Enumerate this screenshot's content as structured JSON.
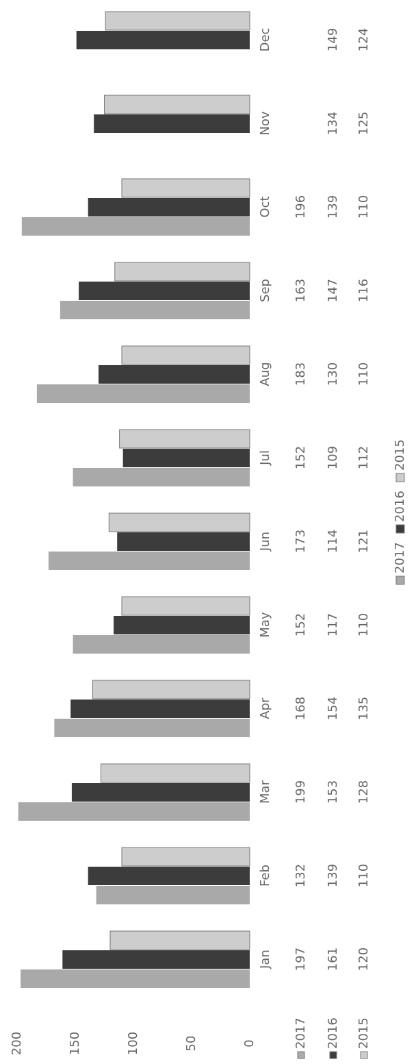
{
  "chart_data": {
    "type": "bar",
    "categories": [
      "Jan",
      "Feb",
      "Mar",
      "Apr",
      "May",
      "Jun",
      "Jul",
      "Aug",
      "Sep",
      "Oct",
      "Nov",
      "Dec"
    ],
    "series": [
      {
        "name": "2017",
        "color": "#a9a9a9",
        "values": [
          197,
          132,
          199,
          168,
          152,
          173,
          152,
          183,
          163,
          196,
          null,
          null
        ]
      },
      {
        "name": "2016",
        "color": "#3c3c3c",
        "values": [
          161,
          139,
          153,
          154,
          117,
          114,
          109,
          130,
          147,
          139,
          134,
          149
        ]
      },
      {
        "name": "2015",
        "color": "#cdcdcd",
        "values": [
          120,
          110,
          128,
          135,
          110,
          121,
          112,
          110,
          116,
          110,
          125,
          124
        ]
      }
    ],
    "ylim": [
      0,
      200
    ],
    "yticks": [
      0,
      50,
      100,
      150,
      200
    ],
    "legend": "bottom"
  }
}
